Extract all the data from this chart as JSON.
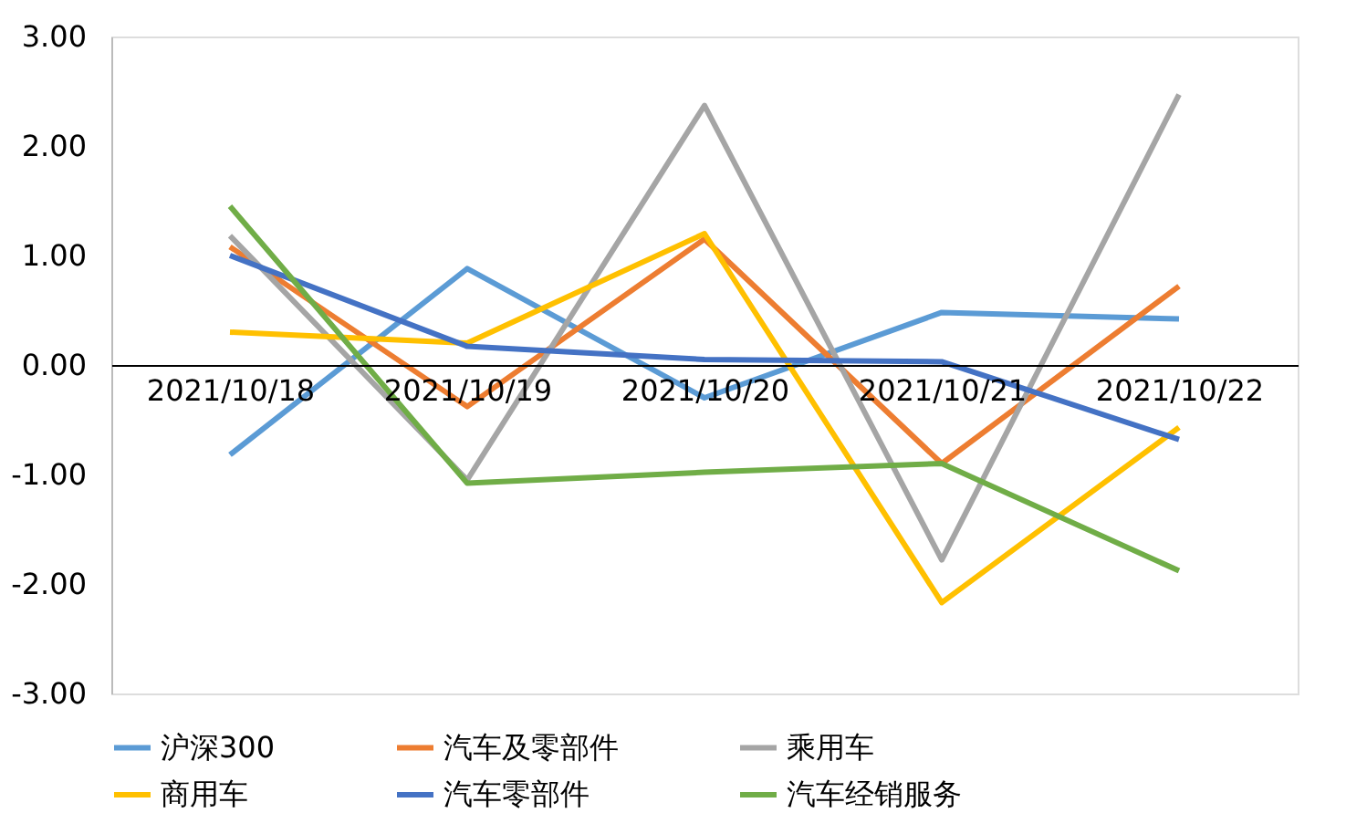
{
  "chart_data": {
    "type": "line",
    "categories": [
      "2021/10/18",
      "2021/10/19",
      "2021/10/20",
      "2021/10/21",
      "2021/10/22"
    ],
    "series": [
      {
        "name": "沪深300",
        "color": "#5b9bd5",
        "values": [
          -0.82,
          0.88,
          -0.3,
          0.48,
          0.42
        ]
      },
      {
        "name": "汽车及零部件",
        "color": "#ed7d31",
        "values": [
          1.08,
          -0.38,
          1.15,
          -0.9,
          0.72
        ]
      },
      {
        "name": "乘用车",
        "color": "#a5a5a5",
        "values": [
          1.18,
          -1.05,
          2.37,
          -1.78,
          2.47
        ]
      },
      {
        "name": "商用车",
        "color": "#ffc000",
        "values": [
          0.3,
          0.2,
          1.2,
          -2.17,
          -0.57
        ]
      },
      {
        "name": "汽车零部件",
        "color": "#4472c4",
        "values": [
          1.0,
          0.17,
          0.05,
          0.03,
          -0.68
        ]
      },
      {
        "name": "汽车经销服务",
        "color": "#70ad47",
        "values": [
          1.45,
          -1.08,
          -0.98,
          -0.9,
          -1.88
        ]
      }
    ],
    "ylim": [
      -3,
      3
    ],
    "yticks": [
      {
        "value": -3,
        "label": "-3.00"
      },
      {
        "value": -2,
        "label": "-2.00"
      },
      {
        "value": -1,
        "label": "-1.00"
      },
      {
        "value": 0,
        "label": "0.00"
      },
      {
        "value": 1,
        "label": "1.00"
      },
      {
        "value": 2,
        "label": "2.00"
      },
      {
        "value": 3,
        "label": "3.00"
      }
    ],
    "grid": false,
    "legend": "bottom",
    "marker": "none",
    "line_style": "solid"
  }
}
